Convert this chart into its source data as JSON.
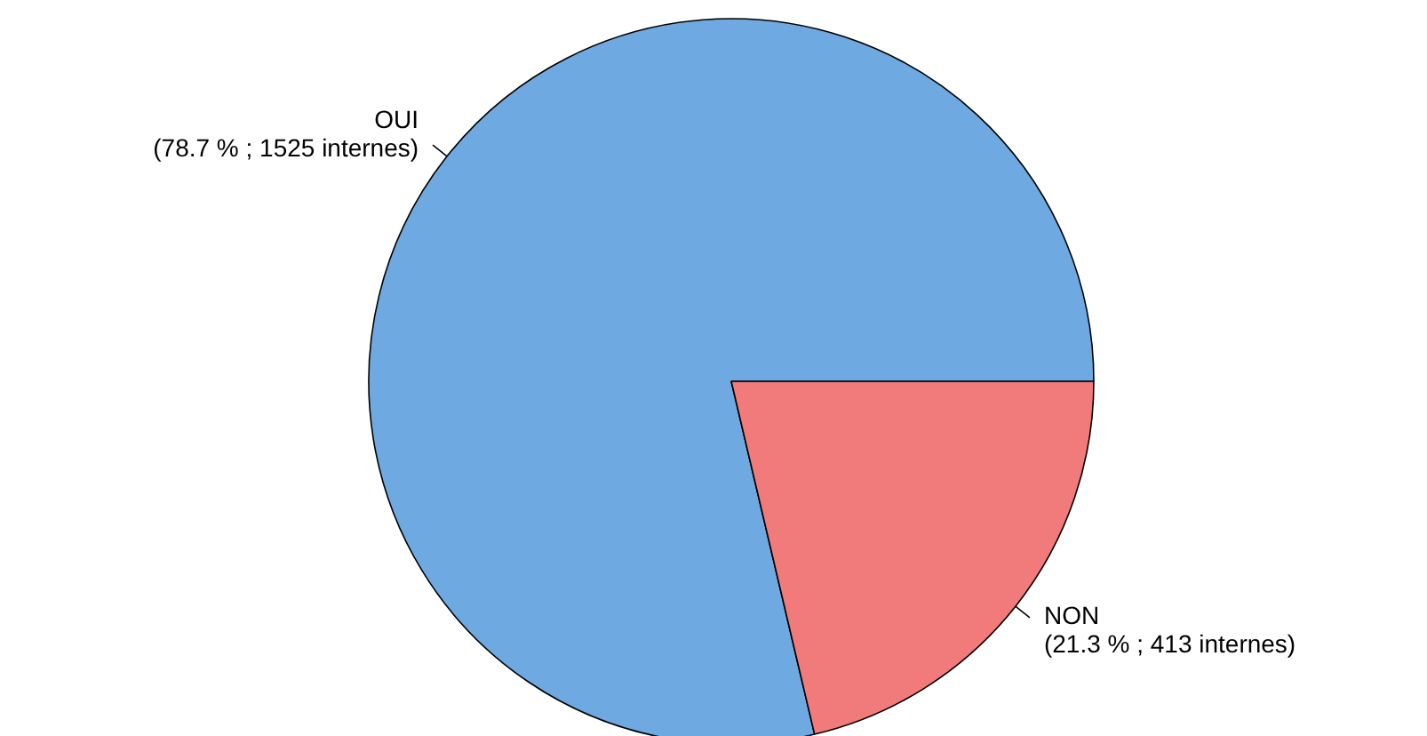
{
  "chart_data": {
    "type": "pie",
    "categories": [
      "OUI",
      "NON"
    ],
    "values": [
      1525,
      413
    ],
    "colors": [
      "#6fa9e1",
      "#f07b7a"
    ],
    "value_labels": [
      "(78.7 % ; 1525 internes)",
      "(21.3 % ; 413 internes)"
    ]
  }
}
